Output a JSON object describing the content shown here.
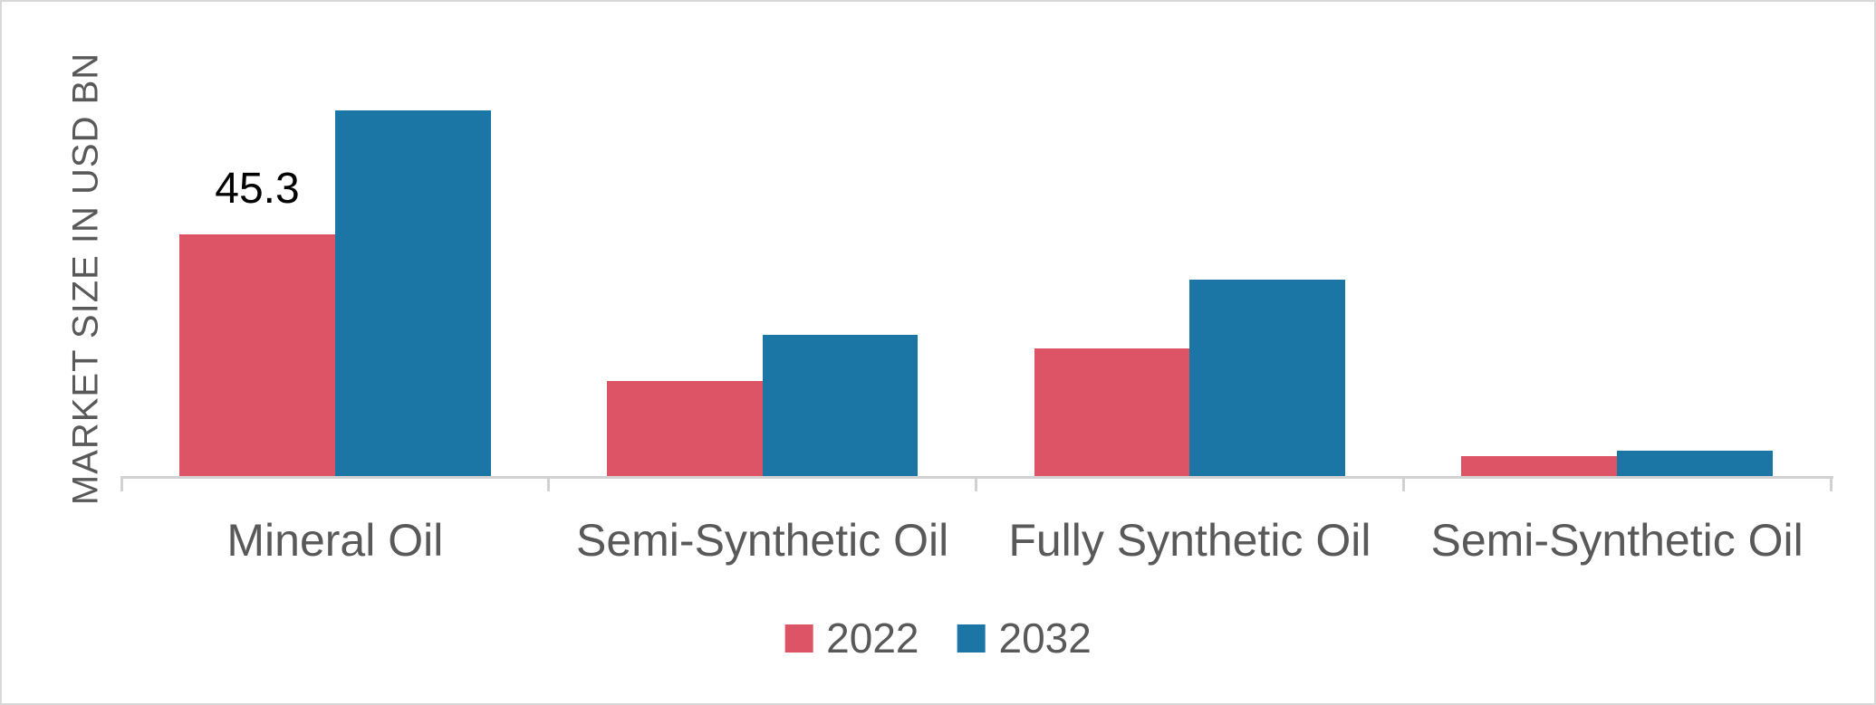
{
  "figure": {
    "background": "#ffffff",
    "border_color": "#d8d8d8"
  },
  "chart_data": {
    "type": "bar",
    "title": "",
    "xlabel": "",
    "ylabel": "MARKET SIZE IN USD BN",
    "categories": [
      "Mineral Oil",
      "Semi-Synthetic Oil",
      "Fully Synthetic Oil",
      "Semi-Synthetic Oil"
    ],
    "series": [
      {
        "name": "2022",
        "color": "#dd5466",
        "values": [
          45.3,
          17.8,
          23.9,
          3.7
        ]
      },
      {
        "name": "2032",
        "color": "#1b75a5",
        "values": [
          68.6,
          26.5,
          36.8,
          4.8
        ]
      }
    ],
    "data_labels": [
      {
        "series_index": 0,
        "category_index": 0,
        "text": "45.3",
        "color": "#000000"
      }
    ],
    "ylim": [
      0,
      72
    ],
    "grid": false,
    "legend_position": "bottom-center",
    "axis_color": "#d2d2d2",
    "text_color": "#595959"
  }
}
